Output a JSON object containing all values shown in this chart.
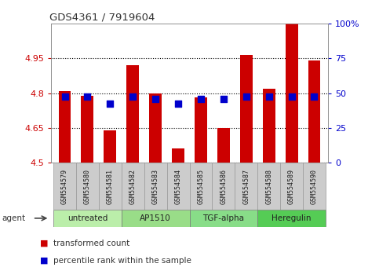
{
  "title": "GDS4361 / 7919604",
  "samples": [
    "GSM554579",
    "GSM554580",
    "GSM554581",
    "GSM554582",
    "GSM554583",
    "GSM554584",
    "GSM554585",
    "GSM554586",
    "GSM554587",
    "GSM554588",
    "GSM554589",
    "GSM554590"
  ],
  "bar_values": [
    4.81,
    4.79,
    4.64,
    4.92,
    4.8,
    4.56,
    4.78,
    4.65,
    4.965,
    4.82,
    5.1,
    4.94
  ],
  "percentile_values": [
    4.785,
    4.785,
    4.755,
    4.785,
    4.775,
    4.755,
    4.775,
    4.775,
    4.785,
    4.785,
    4.785,
    4.785
  ],
  "ylim_left": [
    4.5,
    5.1
  ],
  "ylim_right": [
    0,
    100
  ],
  "yticks_left": [
    4.5,
    4.65,
    4.8,
    4.95
  ],
  "ytick_labels_left": [
    "4.5",
    "4.65",
    "4.8",
    "4.95"
  ],
  "yticks_right": [
    0,
    25,
    50,
    75,
    100
  ],
  "ytick_labels_right": [
    "0",
    "25",
    "50",
    "75",
    "100%"
  ],
  "bar_color": "#cc0000",
  "percentile_color": "#0000cc",
  "bar_bottom": 4.5,
  "groups": [
    {
      "label": "untreated",
      "indices": [
        0,
        1,
        2
      ]
    },
    {
      "label": "AP1510",
      "indices": [
        3,
        4,
        5
      ]
    },
    {
      "label": "TGF-alpha",
      "indices": [
        6,
        7,
        8
      ]
    },
    {
      "label": "Heregulin",
      "indices": [
        9,
        10,
        11
      ]
    }
  ],
  "group_colors": [
    "#bbeeaa",
    "#99dd88",
    "#88dd88",
    "#55cc55"
  ],
  "left_tick_color": "#cc0000",
  "right_tick_color": "#0000cc",
  "grid_linestyle": "dotted",
  "grid_lw": 0.8,
  "background_color": "#ffffff",
  "xticklabel_bg": "#cccccc",
  "bar_width": 0.55,
  "percentile_size": 30,
  "legend_items": [
    {
      "label": "transformed count",
      "color": "#cc0000"
    },
    {
      "label": "percentile rank within the sample",
      "color": "#0000cc"
    }
  ]
}
